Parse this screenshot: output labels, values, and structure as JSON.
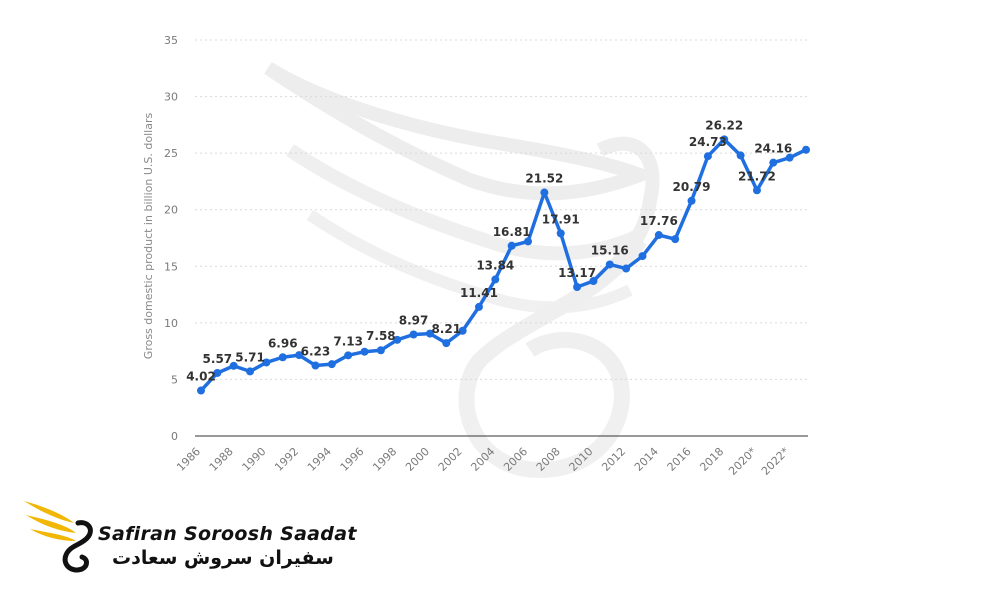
{
  "chart_data": {
    "type": "line",
    "ylabel": "Gross domestic product in billion U.S. dollars",
    "ylim": [
      0,
      35
    ],
    "y_ticks": [
      0,
      5,
      10,
      15,
      20,
      25,
      30,
      35
    ],
    "x_tick_labels": [
      "1986",
      "1988",
      "1990",
      "1992",
      "1994",
      "1996",
      "1998",
      "2000",
      "2002",
      "2004",
      "2006",
      "2008",
      "2010",
      "2012",
      "2014",
      "2016",
      "2018",
      "2020*",
      "2022*"
    ],
    "grid": true,
    "series_color": "#1f6fe0",
    "x": [
      "1986",
      "1987",
      "1988",
      "1989",
      "1990",
      "1991",
      "1992",
      "1993",
      "1994",
      "1995",
      "1996",
      "1997",
      "1998",
      "1999",
      "2000",
      "2001",
      "2002",
      "2003",
      "2004",
      "2005",
      "2006",
      "2007",
      "2008",
      "2009",
      "2010",
      "2011",
      "2012",
      "2013",
      "2014",
      "2015",
      "2016",
      "2017",
      "2018",
      "2019",
      "2020*",
      "2021*",
      "2022*",
      "2023*"
    ],
    "values": [
      4.02,
      5.57,
      6.2,
      5.71,
      6.5,
      6.96,
      7.15,
      6.23,
      6.35,
      7.13,
      7.45,
      7.58,
      8.5,
      8.97,
      9.05,
      8.21,
      9.3,
      11.41,
      13.84,
      16.81,
      17.2,
      21.52,
      17.91,
      13.17,
      13.7,
      15.16,
      14.8,
      15.9,
      17.76,
      17.4,
      20.79,
      24.73,
      26.22,
      24.8,
      21.72,
      24.16,
      24.6,
      25.3
    ],
    "labels": [
      {
        "i": 0,
        "text": "4.02"
      },
      {
        "i": 1,
        "text": "5.57"
      },
      {
        "i": 3,
        "text": "5.71"
      },
      {
        "i": 5,
        "text": "6.96"
      },
      {
        "i": 7,
        "text": "6.23"
      },
      {
        "i": 9,
        "text": "7.13"
      },
      {
        "i": 11,
        "text": "7.58"
      },
      {
        "i": 13,
        "text": "8.97"
      },
      {
        "i": 15,
        "text": "8.21"
      },
      {
        "i": 17,
        "text": "11.41"
      },
      {
        "i": 18,
        "text": "13.84"
      },
      {
        "i": 19,
        "text": "16.81"
      },
      {
        "i": 21,
        "text": "21.52"
      },
      {
        "i": 22,
        "text": "17.91"
      },
      {
        "i": 23,
        "text": "13.17"
      },
      {
        "i": 25,
        "text": "15.16"
      },
      {
        "i": 28,
        "text": "17.76"
      },
      {
        "i": 30,
        "text": "20.79"
      },
      {
        "i": 31,
        "text": "24.73"
      },
      {
        "i": 32,
        "text": "26.22"
      },
      {
        "i": 34,
        "text": "21.72"
      },
      {
        "i": 35,
        "text": "24.16"
      }
    ]
  },
  "brand": {
    "name_latin": "Safiran Soroosh Saadat",
    "name_farsi": "سفیران سروش سعادت",
    "accent": "#f2b705"
  }
}
